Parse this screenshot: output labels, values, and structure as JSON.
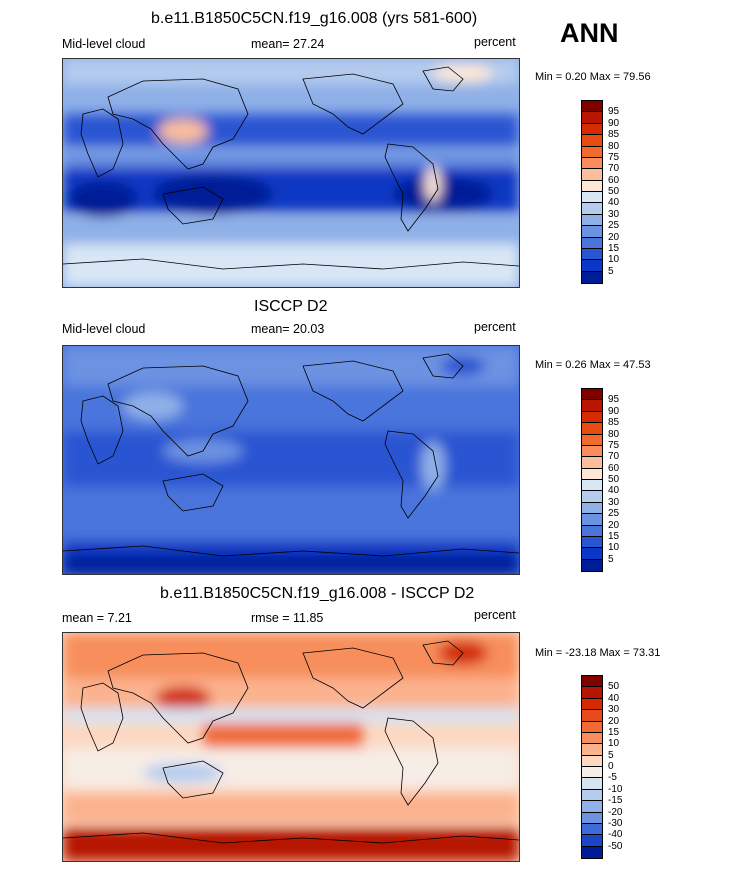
{
  "season": "ANN",
  "panels": [
    {
      "title": "b.e11.B1850C5CN.f19_g16.008 (yrs 581-600)",
      "left_label": "Mid-level cloud",
      "mean_label": "mean=  27.24",
      "right_label": "percent",
      "minmax": "Min =   0.20 Max =  79.56",
      "colorbar_labels": [
        "95",
        "90",
        "85",
        "80",
        "75",
        "70",
        "60",
        "50",
        "40",
        "30",
        "25",
        "20",
        "15",
        "10",
        "5"
      ]
    },
    {
      "title": "ISCCP D2",
      "left_label": "Mid-level cloud",
      "mean_label": "mean=  20.03",
      "right_label": "percent",
      "minmax": "Min =   0.26 Max =  47.53",
      "colorbar_labels": [
        "95",
        "90",
        "85",
        "80",
        "75",
        "70",
        "60",
        "50",
        "40",
        "30",
        "25",
        "20",
        "15",
        "10",
        "5"
      ]
    },
    {
      "title": "b.e11.B1850C5CN.f19_g16.008 - ISCCP D2",
      "left_label": "mean =   7.21",
      "mean_label": "rmse =  11.85",
      "right_label": "percent",
      "minmax": "Min = -23.18 Max =  73.31",
      "colorbar_labels": [
        "50",
        "40",
        "30",
        "20",
        "15",
        "10",
        "5",
        "0",
        "-5",
        "-10",
        "-15",
        "-20",
        "-30",
        "-40",
        "-50"
      ]
    }
  ],
  "colors": {
    "abs_scale": [
      "#800000",
      "#B81400",
      "#D62A00",
      "#E84A10",
      "#F26A30",
      "#F88E5C",
      "#FBBE9C",
      "#FCE7D8",
      "#D9E6F5",
      "#B5CCEE",
      "#8FB0E8",
      "#6C92E2",
      "#4A74DC",
      "#2A55D2",
      "#0A38C4",
      "#001B96"
    ],
    "diff_scale": [
      "#800000",
      "#B51400",
      "#D32A05",
      "#E64A1A",
      "#F06A35",
      "#F78E5C",
      "#FBB28E",
      "#FCD8C2",
      "#F7EDE7",
      "#D6E3F3",
      "#B5CCEE",
      "#8FB0E8",
      "#6C92E2",
      "#3F6BD8",
      "#1A47C8",
      "#001B96"
    ]
  }
}
